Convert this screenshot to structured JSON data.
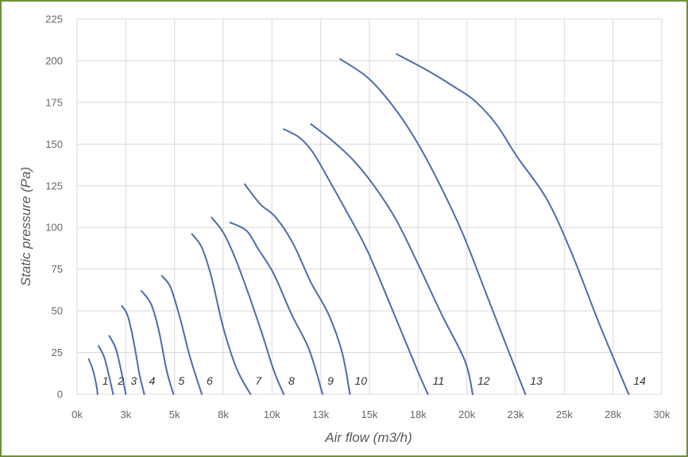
{
  "chart_data": {
    "type": "line",
    "xlabel": "Air flow (m3/h)",
    "ylabel": "Static pressure (Pa)",
    "xlim": [
      0,
      30000
    ],
    "ylim": [
      0,
      225
    ],
    "x_ticks": [
      {
        "value": 0,
        "label": "0k"
      },
      {
        "value": 2500,
        "label": "3k"
      },
      {
        "value": 5000,
        "label": "5k"
      },
      {
        "value": 7500,
        "label": "8k"
      },
      {
        "value": 10000,
        "label": "10k"
      },
      {
        "value": 12500,
        "label": "13k"
      },
      {
        "value": 15000,
        "label": "15k"
      },
      {
        "value": 17500,
        "label": "18k"
      },
      {
        "value": 20000,
        "label": "20k"
      },
      {
        "value": 22500,
        "label": "23k"
      },
      {
        "value": 25000,
        "label": "25k"
      },
      {
        "value": 27500,
        "label": "28k"
      },
      {
        "value": 30000,
        "label": "30k"
      }
    ],
    "y_ticks": [
      0,
      25,
      50,
      75,
      100,
      125,
      150,
      175,
      200,
      225
    ],
    "grid": true,
    "line_color": "#4a6ea8",
    "series": [
      {
        "name": "1",
        "points": [
          [
            600,
            21
          ],
          [
            800,
            15
          ],
          [
            1000,
            5
          ],
          [
            1050,
            0
          ]
        ]
      },
      {
        "name": "2",
        "points": [
          [
            1100,
            29
          ],
          [
            1400,
            22
          ],
          [
            1700,
            8
          ],
          [
            1850,
            0
          ]
        ]
      },
      {
        "name": "3",
        "points": [
          [
            1650,
            35
          ],
          [
            2000,
            27
          ],
          [
            2300,
            12
          ],
          [
            2500,
            0
          ]
        ]
      },
      {
        "name": "4",
        "points": [
          [
            2300,
            53
          ],
          [
            2600,
            47
          ],
          [
            2900,
            32
          ],
          [
            3200,
            12
          ],
          [
            3450,
            0
          ]
        ]
      },
      {
        "name": "5",
        "points": [
          [
            3300,
            62
          ],
          [
            3800,
            54
          ],
          [
            4200,
            38
          ],
          [
            4600,
            14
          ],
          [
            4950,
            0
          ]
        ]
      },
      {
        "name": "6",
        "points": [
          [
            4350,
            71
          ],
          [
            4800,
            64
          ],
          [
            5300,
            45
          ],
          [
            5800,
            22
          ],
          [
            6400,
            0
          ]
        ]
      },
      {
        "name": "7",
        "points": [
          [
            5900,
            96
          ],
          [
            6400,
            88
          ],
          [
            6900,
            70
          ],
          [
            7500,
            40
          ],
          [
            8200,
            15
          ],
          [
            8900,
            0
          ]
        ]
      },
      {
        "name": "8",
        "points": [
          [
            6900,
            106
          ],
          [
            7500,
            97
          ],
          [
            8100,
            82
          ],
          [
            8800,
            60
          ],
          [
            9500,
            36
          ],
          [
            10100,
            14
          ],
          [
            10600,
            0
          ]
        ]
      },
      {
        "name": "9",
        "points": [
          [
            7850,
            103
          ],
          [
            8700,
            98
          ],
          [
            9300,
            87
          ],
          [
            10100,
            72
          ],
          [
            11000,
            48
          ],
          [
            11900,
            27
          ],
          [
            12600,
            0
          ]
        ]
      },
      {
        "name": "10",
        "points": [
          [
            8600,
            126
          ],
          [
            9400,
            114
          ],
          [
            10200,
            106
          ],
          [
            11100,
            90
          ],
          [
            12000,
            67
          ],
          [
            12900,
            48
          ],
          [
            13600,
            25
          ],
          [
            14000,
            0
          ]
        ]
      },
      {
        "name": "11",
        "points": [
          [
            10600,
            159
          ],
          [
            11400,
            154
          ],
          [
            12100,
            145
          ],
          [
            13000,
            127
          ],
          [
            13900,
            108
          ],
          [
            14900,
            86
          ],
          [
            16200,
            50
          ],
          [
            17400,
            16
          ],
          [
            18000,
            0
          ]
        ]
      },
      {
        "name": "12",
        "points": [
          [
            12000,
            162
          ],
          [
            13100,
            152
          ],
          [
            14200,
            140
          ],
          [
            15300,
            124
          ],
          [
            16400,
            104
          ],
          [
            17500,
            78
          ],
          [
            18700,
            48
          ],
          [
            19900,
            20
          ],
          [
            20300,
            0
          ]
        ]
      },
      {
        "name": "13",
        "points": [
          [
            13500,
            201
          ],
          [
            14900,
            190
          ],
          [
            16200,
            173
          ],
          [
            17400,
            152
          ],
          [
            18600,
            126
          ],
          [
            19800,
            96
          ],
          [
            21000,
            60
          ],
          [
            22200,
            24
          ],
          [
            23000,
            0
          ]
        ]
      },
      {
        "name": "14",
        "points": [
          [
            16400,
            204
          ],
          [
            18000,
            194
          ],
          [
            19400,
            184
          ],
          [
            20400,
            176
          ],
          [
            21500,
            162
          ],
          [
            22600,
            142
          ],
          [
            24100,
            117
          ],
          [
            25400,
            84
          ],
          [
            26800,
            42
          ],
          [
            28300,
            0
          ]
        ]
      }
    ]
  }
}
